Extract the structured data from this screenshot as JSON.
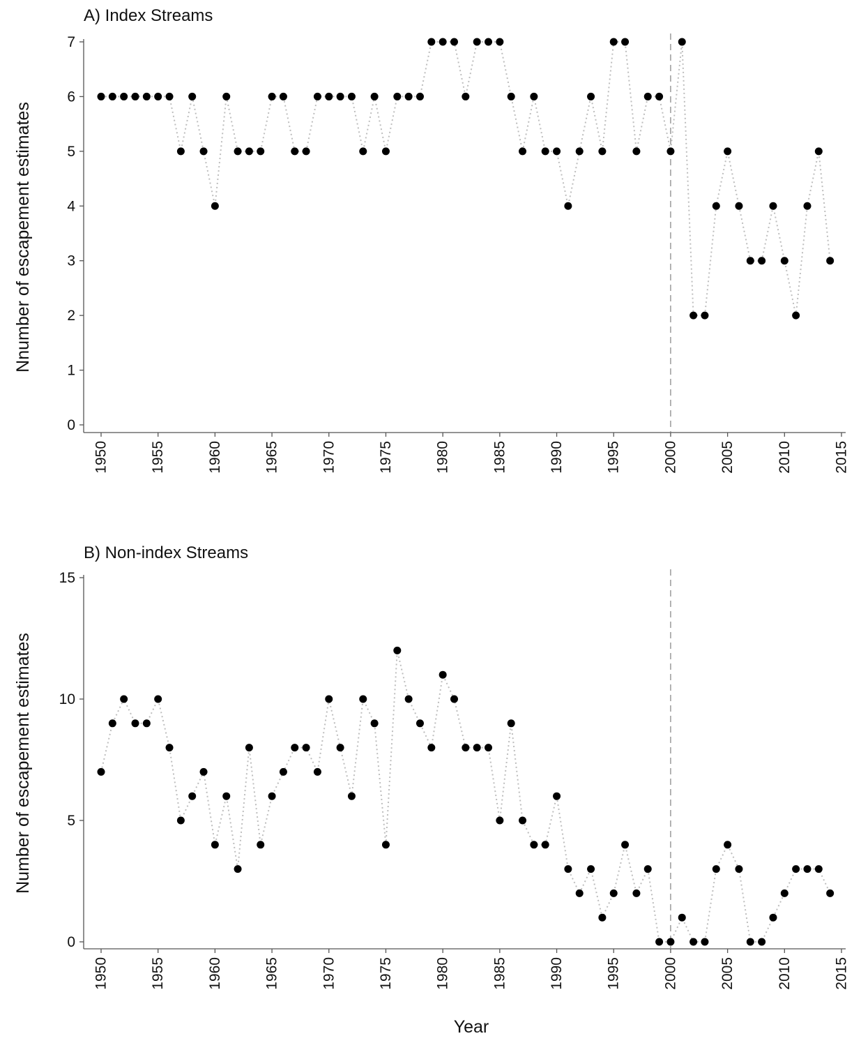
{
  "chart_data": [
    {
      "type": "scatter",
      "title": "A) Index Streams",
      "xlabel": "",
      "ylabel": "Nnumber of escapement estimates",
      "xlim": [
        1950,
        2015
      ],
      "ylim": [
        0,
        7
      ],
      "x_ticks": [
        "1950",
        "1955",
        "1960",
        "1965",
        "1970",
        "1975",
        "1980",
        "1985",
        "1990",
        "1995",
        "2000",
        "2005",
        "2010",
        "2015"
      ],
      "y_ticks": [
        "0",
        "1",
        "2",
        "3",
        "4",
        "5",
        "6",
        "7"
      ],
      "reference_line_x": 2000,
      "grid": false,
      "connector": "dotted grey line",
      "x": [
        1950,
        1951,
        1952,
        1953,
        1954,
        1955,
        1956,
        1957,
        1958,
        1959,
        1960,
        1961,
        1962,
        1963,
        1964,
        1965,
        1966,
        1967,
        1968,
        1969,
        1970,
        1971,
        1972,
        1973,
        1974,
        1975,
        1976,
        1977,
        1978,
        1979,
        1980,
        1981,
        1982,
        1983,
        1984,
        1985,
        1986,
        1987,
        1988,
        1989,
        1990,
        1991,
        1992,
        1993,
        1994,
        1995,
        1996,
        1997,
        1998,
        1999,
        2000,
        2001,
        2002,
        2003,
        2004,
        2005,
        2006,
        2007,
        2008,
        2009,
        2010,
        2011,
        2012,
        2013,
        2014
      ],
      "y": [
        6,
        6,
        6,
        6,
        6,
        6,
        6,
        5,
        6,
        5,
        4,
        6,
        5,
        5,
        5,
        6,
        6,
        5,
        5,
        6,
        6,
        6,
        6,
        5,
        6,
        5,
        6,
        6,
        6,
        7,
        7,
        7,
        6,
        7,
        7,
        7,
        6,
        5,
        6,
        5,
        5,
        4,
        5,
        6,
        5,
        7,
        7,
        5,
        6,
        6,
        5,
        7,
        2,
        2,
        4,
        5,
        4,
        3,
        3,
        4,
        3,
        2,
        4,
        5,
        3
      ]
    },
    {
      "type": "scatter",
      "title": "B) Non-index Streams",
      "xlabel": "Year",
      "ylabel": "Number of escapement estimates",
      "xlim": [
        1950,
        2015
      ],
      "ylim": [
        0,
        15
      ],
      "x_ticks": [
        "1950",
        "1955",
        "1960",
        "1965",
        "1970",
        "1975",
        "1980",
        "1985",
        "1990",
        "1995",
        "2000",
        "2005",
        "2010",
        "2015"
      ],
      "y_ticks": [
        "0",
        "5",
        "10",
        "15"
      ],
      "reference_line_x": 2000,
      "grid": false,
      "connector": "dotted grey line",
      "x": [
        1950,
        1951,
        1952,
        1953,
        1954,
        1955,
        1956,
        1957,
        1958,
        1959,
        1960,
        1961,
        1962,
        1963,
        1964,
        1965,
        1966,
        1967,
        1968,
        1969,
        1970,
        1971,
        1972,
        1973,
        1974,
        1975,
        1976,
        1977,
        1978,
        1979,
        1980,
        1981,
        1982,
        1983,
        1984,
        1985,
        1986,
        1987,
        1988,
        1989,
        1990,
        1991,
        1992,
        1993,
        1994,
        1995,
        1996,
        1997,
        1998,
        1999,
        2000,
        2001,
        2002,
        2003,
        2004,
        2005,
        2006,
        2007,
        2008,
        2009,
        2010,
        2011,
        2012,
        2013,
        2014
      ],
      "y": [
        7,
        9,
        10,
        9,
        9,
        10,
        8,
        5,
        6,
        7,
        4,
        6,
        3,
        8,
        4,
        6,
        7,
        8,
        8,
        7,
        10,
        8,
        6,
        10,
        9,
        4,
        12,
        10,
        9,
        8,
        11,
        10,
        8,
        8,
        8,
        5,
        9,
        5,
        4,
        4,
        6,
        3,
        2,
        3,
        1,
        2,
        4,
        2,
        3,
        0,
        0,
        1,
        0,
        0,
        3,
        4,
        3,
        0,
        0,
        1,
        2,
        3,
        3,
        3,
        2
      ]
    }
  ]
}
